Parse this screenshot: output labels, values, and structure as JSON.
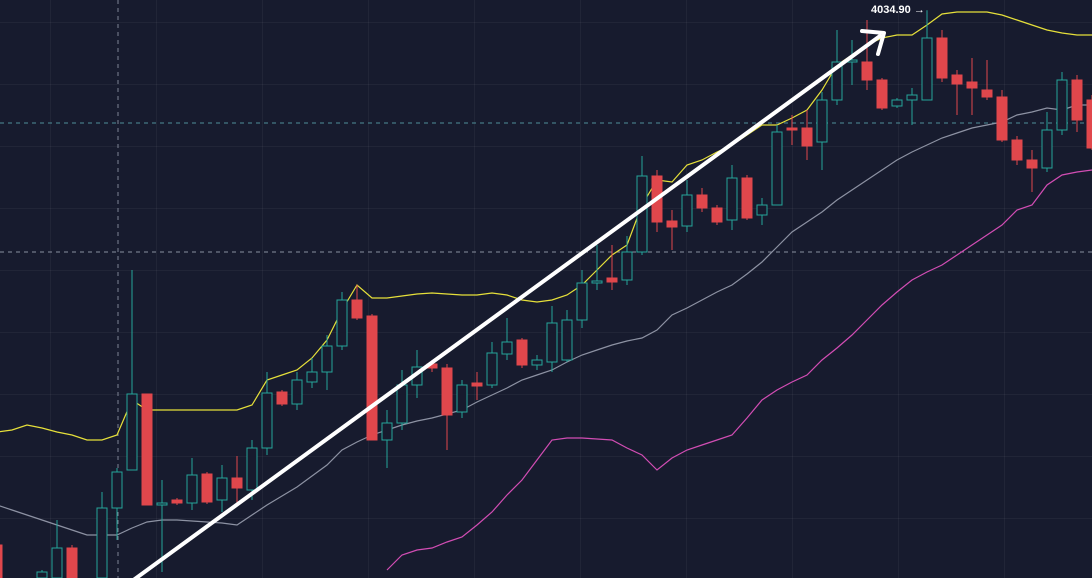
{
  "chart_data": {
    "type": "candlestick",
    "ylim": [
      3751,
      4040
    ],
    "up_color": "#26a69a",
    "down_color": "#e0474c",
    "open": [
      3767.5,
      null,
      null,
      3751,
      3751,
      3766,
      null,
      3751,
      3786,
      3805,
      3843,
      3787.5,
      3790,
      3788.5,
      3803,
      3790,
      3801,
      3795,
      3816,
      3844,
      3838,
      3849,
      3854,
      3867,
      3890,
      3882,
      3820,
      3828.5,
      3847.5,
      3858,
      3856,
      3834,
      3848.5,
      3847.5,
      3863,
      3870,
      3857.5,
      3859,
      3860,
      3880,
      3898.5,
      3901,
      3900,
      3914,
      3952,
      3929.5,
      3927,
      3942.5,
      3936,
      3930,
      3951,
      3932.5,
      3937.5,
      3976,
      3976,
      3969,
      3990,
      4009,
      4009,
      4000,
      3987,
      3990,
      3990,
      4021,
      4002.5,
      3999,
      3995,
      3991.5,
      3970,
      3960,
      3956,
      3975,
      4000,
      3990
    ],
    "high": [
      3770,
      null,
      null,
      3755,
      3780,
      3767.5,
      null,
      3794,
      3806,
      3905,
      3843,
      3800,
      3791,
      3811,
      3804,
      3807.5,
      3812,
      3820,
      3854,
      3845,
      3854,
      3861,
      3872.5,
      3894,
      3897.5,
      3883,
      3835,
      3855,
      3865,
      3860,
      3858,
      3850,
      3854,
      3869,
      3881,
      3871,
      3862.5,
      3887,
      3885,
      3905,
      3917.5,
      3917.5,
      3922,
      3962,
      3955,
      3935,
      3950,
      3946,
      3937.5,
      3957.5,
      3952.5,
      3941,
      3977.5,
      3982.5,
      3985,
      3994,
      4025,
      4020,
      4030,
      4001,
      3991,
      3996,
      4034.9,
      4025,
      4005,
      4011,
      4010,
      3995,
      3972,
      3965,
      3984,
      4004,
      4002.5,
      3992.5
    ],
    "low": [
      3751,
      null,
      null,
      3751,
      3751,
      3751,
      null,
      3751,
      3770,
      3805,
      3787.5,
      3754,
      3787.5,
      3785,
      3788,
      3784,
      3787.5,
      3790,
      3812.5,
      3837,
      3835,
      3846,
      3845,
      3865,
      3880,
      3820,
      3806,
      3825,
      3841,
      3854,
      3815,
      3831,
      3840,
      3846,
      3860,
      3856,
      3855,
      3854,
      3859,
      3876,
      3895,
      3895,
      3897.5,
      3912.5,
      3924,
      3915,
      3924,
      3934,
      3927.5,
      3925,
      3930,
      3927.5,
      3937.5,
      3967.5,
      3960,
      3955,
      3987.5,
      3997.5,
      3995,
      3985,
      3986,
      3977.5,
      3990,
      3999,
      3982.5,
      3982.5,
      3990,
      3969,
      3957.5,
      3944,
      3954,
      3972.5,
      3974,
      3965
    ],
    "close": [
      3751,
      null,
      null,
      3754,
      3766,
      3751,
      null,
      3786,
      3804,
      3843,
      3787.5,
      3788.5,
      3788.5,
      3802.5,
      3789,
      3801,
      3796,
      3816,
      3843.5,
      3838,
      3850,
      3854,
      3867,
      3890,
      3881,
      3820,
      3828.5,
      3847.5,
      3856.5,
      3856,
      3832.5,
      3847.5,
      3847,
      3863.5,
      3869,
      3857.5,
      3860,
      3878.5,
      3880,
      3898.5,
      3899.5,
      3899,
      3914,
      3952,
      3929,
      3926.5,
      3942.5,
      3936,
      3929,
      3951,
      3931,
      3937.5,
      3974,
      3975,
      3967,
      3990,
      4009,
      4010,
      4000,
      3986,
      3990,
      3992.5,
      4021,
      4001,
      3998,
      3996,
      3991.5,
      3970,
      3960,
      3956,
      3975,
      4000,
      3980,
      3966
    ],
    "series": [
      {
        "color": "#e6e03a",
        "values": [
          3824,
          3825,
          3827.5,
          3826,
          3824,
          3822.5,
          3820,
          3820,
          3822.5,
          3840,
          3835,
          3835,
          3835,
          3835,
          3835,
          3835,
          3835,
          3837.5,
          3850,
          3852.5,
          3855,
          3861,
          3870,
          3885,
          3897.5,
          3891,
          3891,
          3892,
          3893,
          3893.5,
          3893,
          3892.5,
          3892.5,
          3893.5,
          3892.5,
          3890,
          3889,
          3890,
          3892.5,
          3897.5,
          3905,
          3912.5,
          3917.5,
          3937.5,
          3950,
          3949,
          3957.5,
          3960,
          3964,
          3967.5,
          3972.5,
          3977.5,
          3977.5,
          3981,
          3985,
          3995,
          4007.5,
          4012.5,
          4017.5,
          4021,
          4022.5,
          4022.5,
          4027.5,
          4033,
          4034,
          4034,
          4034,
          4032.5,
          4030,
          4027.5,
          4025,
          4023.5,
          4022.5,
          4022.5
        ]
      },
      {
        "color": "#8d92a3",
        "values": [
          3787.5,
          3785,
          3782.5,
          3780,
          3777.5,
          3775,
          3772.5,
          3772.5,
          3772.5,
          3776,
          3779,
          3780,
          3780,
          3779.5,
          3779,
          3778.5,
          3777.5,
          3782.5,
          3787.5,
          3792,
          3796.5,
          3802,
          3807.5,
          3815,
          3819,
          3822.5,
          3825,
          3827.5,
          3829.5,
          3831,
          3833,
          3835,
          3839,
          3842.5,
          3846,
          3850,
          3852.5,
          3855,
          3859,
          3862.5,
          3865,
          3867.5,
          3869.5,
          3871,
          3875,
          3882.5,
          3886,
          3890,
          3894,
          3897.5,
          3903,
          3909,
          3916.5,
          3924,
          3929,
          3934,
          3940,
          3945,
          3950,
          3955,
          3960,
          3964,
          3967.5,
          3971,
          3973.5,
          3976,
          3977.5,
          3979,
          3982.5,
          3984,
          3986,
          3985,
          3987.5,
          3987.5
        ]
      },
      {
        "color": "#d24db4",
        "values": [
          null,
          null,
          null,
          null,
          null,
          null,
          null,
          null,
          null,
          null,
          null,
          null,
          null,
          null,
          null,
          null,
          null,
          null,
          null,
          null,
          null,
          null,
          null,
          null,
          null,
          null,
          3755,
          3762.5,
          3765,
          3766,
          3769,
          3771.5,
          3777.5,
          3784,
          3792.5,
          3800,
          3810,
          3820,
          3821,
          3821,
          3820.5,
          3820,
          3816,
          3812.5,
          3805,
          3811,
          3815,
          3817.5,
          3820,
          3822.5,
          3831,
          3840,
          3845,
          3849,
          3852.5,
          3860,
          3866,
          3872.5,
          3880,
          3887.5,
          3894,
          3900,
          3904,
          3907.5,
          3912.5,
          3917.5,
          3922.5,
          3927.5,
          3935,
          3937.5,
          3947.5,
          3952.5,
          3954,
          3955
        ]
      }
    ],
    "annotation": "4034.90 →"
  }
}
